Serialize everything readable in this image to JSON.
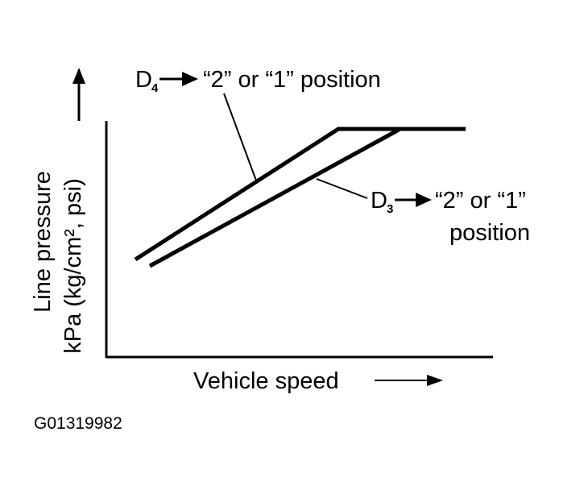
{
  "axes": {
    "y_label": [
      "Line pressure",
      "kPa (kg/cm², psi)"
    ],
    "x_label": "Vehicle speed"
  },
  "curves": [
    {
      "label": {
        "base": "D",
        "sub": "4",
        "lines": [
          "“2” or “1” position"
        ]
      }
    },
    {
      "label": {
        "base": "D",
        "sub": "3",
        "lines": [
          "“2” or “1”",
          "position"
        ]
      }
    }
  ],
  "figure_id": "G01319982"
}
